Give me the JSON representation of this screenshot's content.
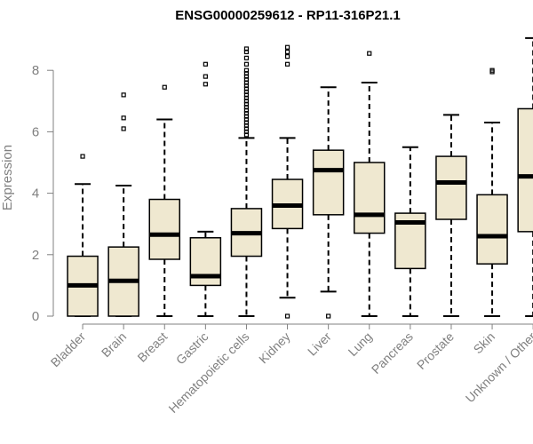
{
  "chart_data": {
    "type": "boxplot",
    "title": "ENSG00000259612 - RP11-316P21.1",
    "xlabel": "",
    "ylabel": "Expression",
    "ylim": [
      0,
      9.0
    ],
    "yticks": [
      0,
      2,
      4,
      6,
      8
    ],
    "categories": [
      "Bladder",
      "Brain",
      "Breast",
      "Gastric",
      "Hematopoietic cells",
      "Kidney",
      "Liver",
      "Lung",
      "Pancreas",
      "Prostate",
      "Skin",
      "Unknown / Other"
    ],
    "boxes": [
      {
        "min": 0,
        "q1": 0,
        "median": 1.0,
        "q3": 1.95,
        "max": 4.3,
        "outliers": [
          5.2
        ]
      },
      {
        "min": 0,
        "q1": 0,
        "median": 1.15,
        "q3": 2.25,
        "max": 4.25,
        "outliers": [
          6.1,
          6.45,
          7.2
        ]
      },
      {
        "min": 0,
        "q1": 1.85,
        "median": 2.65,
        "q3": 3.8,
        "max": 6.4,
        "outliers": [
          7.45
        ]
      },
      {
        "min": 0,
        "q1": 1.0,
        "median": 1.3,
        "q3": 2.55,
        "max": 2.75,
        "outliers": [
          7.55,
          7.8,
          8.2
        ]
      },
      {
        "min": 0,
        "q1": 1.95,
        "median": 2.7,
        "q3": 3.5,
        "max": 5.8,
        "outliers": [
          5.9,
          6.0,
          6.1,
          6.2,
          6.3,
          6.4,
          6.5,
          6.6,
          6.7,
          6.8,
          6.9,
          7.0,
          7.1,
          7.2,
          7.3,
          7.4,
          7.5,
          7.6,
          7.7,
          7.8,
          7.9,
          8.0,
          8.2,
          8.4,
          8.6,
          8.7
        ]
      },
      {
        "min": 0.6,
        "q1": 2.85,
        "median": 3.6,
        "q3": 4.45,
        "max": 5.8,
        "outliers": [
          0,
          8.2,
          8.45,
          8.6,
          8.75
        ]
      },
      {
        "min": 0.8,
        "q1": 3.3,
        "median": 4.75,
        "q3": 5.4,
        "max": 7.45,
        "outliers": [
          0
        ]
      },
      {
        "min": 0,
        "q1": 2.7,
        "median": 3.3,
        "q3": 5.0,
        "max": 7.6,
        "outliers": [
          8.55
        ]
      },
      {
        "min": 0,
        "q1": 1.55,
        "median": 3.05,
        "q3": 3.35,
        "max": 5.5,
        "outliers": []
      },
      {
        "min": 0,
        "q1": 3.15,
        "median": 4.35,
        "q3": 5.2,
        "max": 6.55,
        "outliers": []
      },
      {
        "min": 0,
        "q1": 1.7,
        "median": 2.6,
        "q3": 3.95,
        "max": 6.3,
        "outliers": [
          7.95,
          8.0
        ]
      },
      {
        "min": 0,
        "q1": 2.75,
        "median": 4.55,
        "q3": 6.75,
        "max": 9.05,
        "outliers": []
      }
    ],
    "colors": {
      "box_fill": "#efe8d0",
      "axis": "#808080",
      "stroke": "#000000"
    }
  }
}
